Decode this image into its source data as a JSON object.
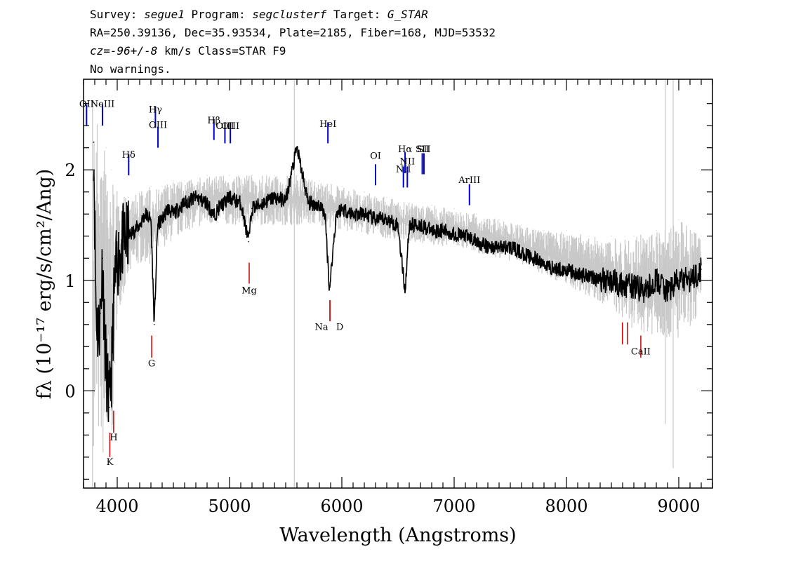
{
  "header": {
    "line1": {
      "survey_label": "Survey:",
      "survey": "segue1",
      "program_label": "Program:",
      "program": "segclusterf",
      "target_label": "Target:",
      "target": "G_STAR"
    },
    "line2": "RA=250.39136, Dec=35.93534, Plate=2185, Fiber=168, MJD=53532",
    "line3": {
      "cz_label": "cz=",
      "cz": "-96+/-8",
      "rest": " km/s Class=STAR F9"
    },
    "line4": "No warnings."
  },
  "chart_data": {
    "type": "line",
    "xlabel": "Wavelength (Angstroms)",
    "ylabel": "fλ (10⁻¹⁷ erg/s/cm²/Ang)",
    "xlim": [
      3700,
      9300
    ],
    "ylim": [
      -0.88,
      2.82
    ],
    "x_ticks": [
      4000,
      5000,
      6000,
      7000,
      8000,
      9000
    ],
    "y_ticks": [
      0,
      1,
      2
    ],
    "series": [
      {
        "role": "flux",
        "color": "#000000",
        "x": [
          3790,
          3810,
          3830,
          3850,
          3870,
          3890,
          3910,
          3930,
          3950,
          3970,
          3990,
          4010,
          4050,
          4100,
          4150,
          4200,
          4250,
          4300,
          4330,
          4360,
          4400,
          4450,
          4500,
          4600,
          4700,
          4800,
          4860,
          4900,
          5000,
          5100,
          5170,
          5200,
          5300,
          5400,
          5500,
          5600,
          5700,
          5800,
          5850,
          5890,
          5950,
          6000,
          6100,
          6200,
          6300,
          6400,
          6500,
          6563,
          6600,
          6700,
          6800,
          6900,
          7000,
          7100,
          7200,
          7300,
          7400,
          7500,
          7600,
          7700,
          7800,
          7900,
          8000,
          8100,
          8200,
          8300,
          8400,
          8500,
          8600,
          8700,
          8800,
          8900,
          9000,
          9100,
          9200
        ],
        "y": [
          2.25,
          0.8,
          0.5,
          0.7,
          1.2,
          0.4,
          0.1,
          -0.15,
          0.2,
          0.8,
          1.1,
          1.2,
          1.35,
          1.4,
          1.45,
          1.5,
          1.6,
          1.55,
          0.6,
          1.5,
          1.55,
          1.65,
          1.6,
          1.7,
          1.75,
          1.7,
          1.58,
          1.65,
          1.75,
          1.7,
          1.35,
          1.65,
          1.7,
          1.75,
          1.72,
          2.2,
          1.7,
          1.68,
          1.6,
          0.92,
          1.6,
          1.65,
          1.6,
          1.6,
          1.55,
          1.55,
          1.5,
          0.9,
          1.5,
          1.5,
          1.45,
          1.45,
          1.42,
          1.4,
          1.35,
          1.3,
          1.3,
          1.3,
          1.25,
          1.2,
          1.15,
          1.1,
          1.1,
          1.05,
          1.05,
          1.0,
          1.0,
          0.95,
          0.95,
          0.9,
          1.0,
          0.9,
          1.0,
          1.0,
          1.1
        ]
      },
      {
        "role": "error",
        "color": "#c8c8c8",
        "x": [
          3790,
          3850,
          3900,
          3950,
          4000,
          4100,
          4200,
          4300,
          4400,
          4500,
          4600,
          4800,
          5000,
          5200,
          5400,
          5600,
          5800,
          6000,
          6200,
          6400,
          6600,
          6800,
          7000,
          7200,
          7400,
          7600,
          7800,
          8000,
          8200,
          8400,
          8600,
          8800,
          9000,
          9200
        ],
        "y_low": [
          -0.5,
          -0.5,
          -0.8,
          -0.6,
          0.7,
          1.0,
          1.15,
          1.15,
          1.3,
          1.35,
          1.45,
          1.5,
          1.5,
          1.5,
          1.5,
          1.5,
          1.5,
          1.45,
          1.42,
          1.38,
          1.35,
          1.32,
          1.3,
          1.25,
          1.2,
          1.15,
          1.05,
          0.95,
          0.85,
          0.75,
          0.55,
          0.5,
          0.45,
          0.7
        ],
        "y_high": [
          2.6,
          2.4,
          2.2,
          2.0,
          1.8,
          1.75,
          1.8,
          1.85,
          1.85,
          1.9,
          1.9,
          1.95,
          1.95,
          1.95,
          1.95,
          1.95,
          1.9,
          1.85,
          1.8,
          1.75,
          1.7,
          1.68,
          1.65,
          1.6,
          1.55,
          1.5,
          1.45,
          1.45,
          1.4,
          1.4,
          1.4,
          1.45,
          1.55,
          1.4
        ]
      }
    ],
    "emission_lines": [
      {
        "label": "OII",
        "x": 3727,
        "y": 2.4,
        "label_y": 2.57
      },
      {
        "label": "NeIII",
        "x": 3869,
        "y": 2.4,
        "label_y": 2.57
      },
      {
        "label": "Hγ",
        "x": 4340,
        "y": 2.38,
        "label_y": 2.52
      },
      {
        "label": "OIII",
        "x": 4363,
        "y": 2.2,
        "label_y": 2.38
      },
      {
        "label": "Hδ",
        "x": 4102,
        "y": 1.95,
        "label_y": 2.11
      },
      {
        "label": "Hβ",
        "x": 4861,
        "y": 2.27,
        "label_y": 2.42
      },
      {
        "label": "OIII",
        "x": 4959,
        "y": 2.24,
        "label_y": 2.37
      },
      {
        "label": "OIII",
        "x": 5007,
        "y": 2.24,
        "label_y": 2.37
      },
      {
        "label": "HeI",
        "x": 5876,
        "y": 2.24,
        "label_y": 2.39
      },
      {
        "label": "OI",
        "x": 6300,
        "y": 1.86,
        "label_y": 2.1
      },
      {
        "label": "NII",
        "x": 6548,
        "y": 1.84,
        "label_y": 1.98
      },
      {
        "label": "Hα",
        "x": 6563,
        "y": 1.97,
        "label_y": 2.16
      },
      {
        "label": "NII",
        "x": 6583,
        "y": 1.84,
        "label_y": 2.05
      },
      {
        "label": "SII",
        "x": 6716,
        "y": 1.96,
        "label_y": 2.16
      },
      {
        "label": "SII",
        "x": 6731,
        "y": 1.96,
        "label_y": 2.16
      },
      {
        "label": "ArIII",
        "x": 7136,
        "y": 1.68,
        "label_y": 1.88
      }
    ],
    "absorption_lines": [
      {
        "label": "K",
        "x": 3934,
        "y_top": -0.38,
        "y_bottom": -0.6,
        "label_y": -0.67
      },
      {
        "label": "H",
        "x": 3968,
        "y_top": -0.18,
        "y_bottom": -0.38,
        "label_y": -0.45
      },
      {
        "label": "G",
        "x": 4307,
        "y_top": 0.5,
        "y_bottom": 0.3,
        "label_y": 0.22
      },
      {
        "label": "Mg",
        "x": 5175,
        "y_top": 1.16,
        "y_bottom": 0.97,
        "label_y": 0.88
      },
      {
        "label": "Na",
        "x": 5894,
        "y_top": 0.82,
        "y_bottom": 0.63,
        "label_y": 0.55
      },
      {
        "label": "D",
        "x": 5894,
        "y_top": 0.82,
        "y_bottom": 0.63,
        "label_y": 0.55
      },
      {
        "label": "CaII",
        "x": 8542,
        "y_top": 0.62,
        "y_bottom": 0.42,
        "label_y": 0.33
      },
      {
        "label": "CaII",
        "x": 8498,
        "y_top": 0.62,
        "y_bottom": 0.42,
        "label_y": 0.33
      },
      {
        "label": "CaII",
        "x": 8662,
        "y_top": 0.5,
        "y_bottom": 0.3,
        "label_y": 0.33
      }
    ],
    "colors": {
      "emission": "#0000cc",
      "absorption": "#cc0000"
    }
  }
}
